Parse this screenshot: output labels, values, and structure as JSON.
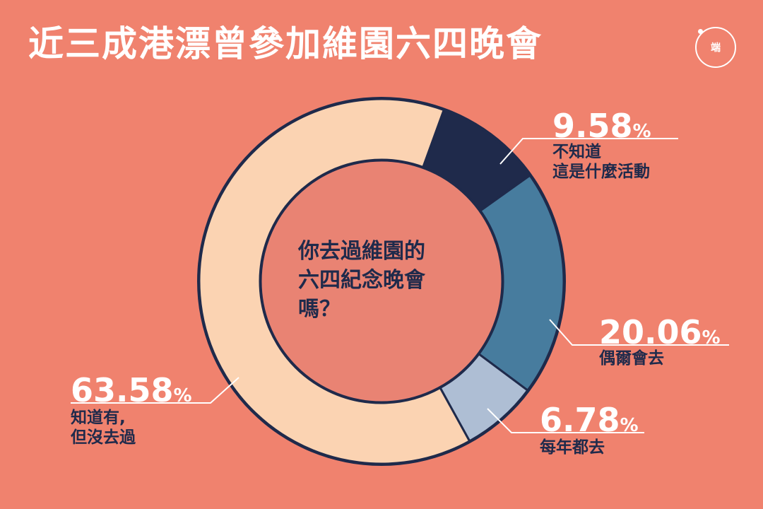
{
  "title": "近三成港漂曾參加維園六四晚會",
  "logo_text": "端",
  "chart_data": {
    "type": "pie",
    "donut": true,
    "center_text": [
      "你去過維園的",
      "六四紀念晚會",
      "嗎？"
    ],
    "slices": [
      {
        "label": [
          "不知道",
          "這是什麼活動"
        ],
        "value": 9.58,
        "display": "9.58",
        "color": "#1F2A4B"
      },
      {
        "label": [
          "偶爾會去"
        ],
        "value": 20.06,
        "display": "20.06",
        "color": "#477C9E"
      },
      {
        "label": [
          "每年都去"
        ],
        "value": 6.78,
        "display": "6.78",
        "color": "#AEBED4"
      },
      {
        "label": [
          "知道有,",
          "但沒去過"
        ],
        "value": 63.58,
        "display": "63.58",
        "color": "#FBD3B2"
      }
    ],
    "percent_sign": "%",
    "colors": {
      "background": "#F0826E",
      "inner": "#E98373",
      "outline": "#1F2A4B",
      "label_text": "#1F2A4B",
      "value_text": "#FFFFFF"
    }
  }
}
